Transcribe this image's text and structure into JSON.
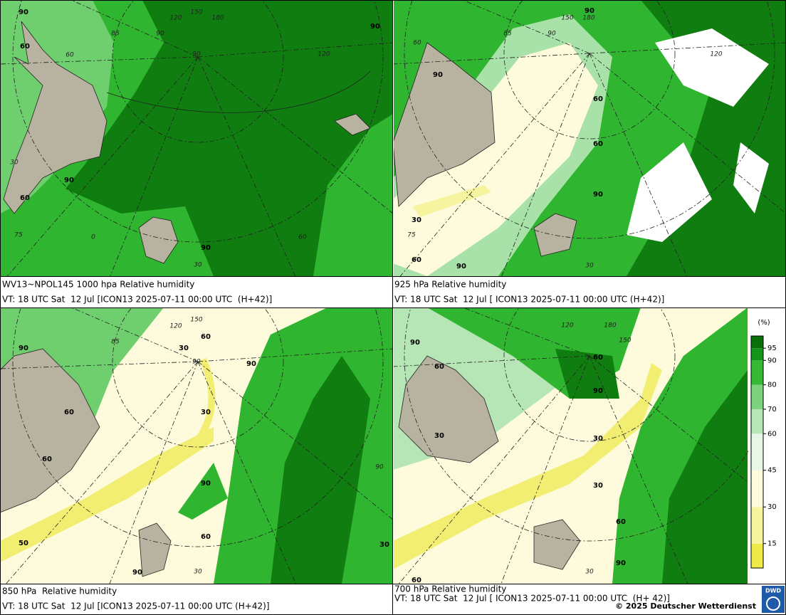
{
  "panels": [
    {
      "title": "WV13~NPOL145 1000 hpa Relative humidity",
      "valid": "VT: 18 UTC Sat  12 Jul [ICON13 2025-07-11 00:00 UTC  (H+42)]",
      "contour_labels": [
        "90",
        "90",
        "60",
        "90",
        "60",
        "90"
      ],
      "grid_labels": [
        "120",
        "150",
        "180",
        "85",
        "90",
        "90",
        "60",
        "120",
        "60",
        "75",
        "30",
        "0",
        "30"
      ]
    },
    {
      "title": "925 hPa Relative humidity",
      "valid": "VT: 18 UTC Sat  12 Jul [ ICON13 2025-07-11 00:00 UTC (H+42)]",
      "contour_labels": [
        "90",
        "60",
        "60",
        "90",
        "30",
        "60",
        "90",
        "90"
      ],
      "grid_labels": [
        "120",
        "150",
        "180",
        "85",
        "90",
        "60",
        "75",
        "30"
      ]
    },
    {
      "title": "850 hPa  Relative humidity",
      "valid": "VT: 18 UTC Sat  12 Jul [ICON13 2025-07-11 00:00 UTC (H+42)]",
      "contour_labels": [
        "90",
        "60",
        "60",
        "30",
        "60",
        "90",
        "30",
        "90",
        "60",
        "50",
        "90",
        "30"
      ],
      "grid_labels": [
        "120",
        "150",
        "85",
        "90",
        "90",
        "30"
      ]
    },
    {
      "title": "700 hPa Relative humidity",
      "valid": "VT: 18 UTC Sat  12 Jul [ ICON13 2025-07-11 00:00 UTC  (H+ 42)]",
      "contour_labels": [
        "90",
        "60",
        "60",
        "90",
        "30",
        "30",
        "30",
        "60",
        "90",
        "60"
      ],
      "grid_labels": [
        "120",
        "180",
        "150",
        "30"
      ]
    }
  ],
  "colorbar": {
    "unit": "(%)",
    "lim": [
      5,
      100
    ],
    "levels": [
      15,
      30,
      45,
      60,
      70,
      80,
      90,
      95
    ],
    "colors": [
      "#eeea4a",
      "#f7f4a0",
      "#fdfbdc",
      "#e8f6e8",
      "#b6e6b6",
      "#7dd27d",
      "#36b836",
      "#14941a",
      "#0a6e0a"
    ]
  },
  "footer": "© 2025 Deutscher Wetterdienst",
  "logo": "DWD"
}
